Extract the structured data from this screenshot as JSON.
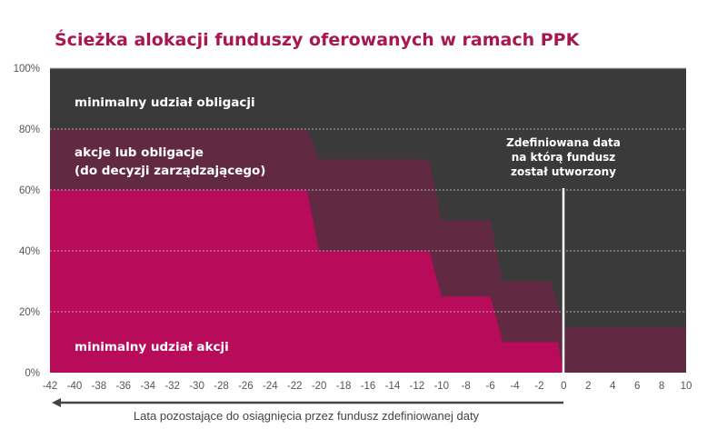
{
  "chart_data": {
    "type": "area",
    "title": "Ścieżka alokacji funduszy oferowanych w ramach PPK",
    "xlabel": "Lata pozostające do osiągnięcia przez fundusz zdefiniowanej daty",
    "xlim": [
      -42,
      10
    ],
    "ylim": [
      0,
      100
    ],
    "x_ticks": [
      "-42",
      "-40",
      "-38",
      "-36",
      "-34",
      "-32",
      "-30",
      "-28",
      "-26",
      "-24",
      "-22",
      "-20",
      "-18",
      "-16",
      "-14",
      "-12",
      "-10",
      "-8",
      "-6",
      "-4",
      "-2",
      "0",
      "2",
      "4",
      "6",
      "8",
      "10"
    ],
    "y_ticks": [
      "0%",
      "20%",
      "40%",
      "60%",
      "80%",
      "100%"
    ],
    "grid": true,
    "series": [
      {
        "name": "minimalny udział akcji",
        "color": "#b80b5a",
        "points": [
          [
            -42,
            60
          ],
          [
            -21,
            60
          ],
          [
            -20,
            40
          ],
          [
            -11,
            40
          ],
          [
            -10,
            25
          ],
          [
            -6,
            25
          ],
          [
            -5,
            10
          ],
          [
            -0.5,
            10
          ],
          [
            0,
            0
          ],
          [
            10,
            0
          ]
        ]
      },
      {
        "name": "akcje lub obligacje (do decyzji zarządzającego)",
        "color": "#612a42",
        "points": [
          [
            -42,
            80
          ],
          [
            -21,
            80
          ],
          [
            -20,
            70
          ],
          [
            -11,
            70
          ],
          [
            -10,
            50
          ],
          [
            -6,
            50
          ],
          [
            -5,
            30
          ],
          [
            -1,
            30
          ],
          [
            0,
            15
          ],
          [
            10,
            15
          ]
        ]
      },
      {
        "name": "minimalny udział obligacji",
        "color": "#3a3a3a",
        "points": [
          [
            -42,
            100
          ],
          [
            10,
            100
          ]
        ]
      }
    ],
    "band_labels": {
      "bonds": "minimalny udział obligacji",
      "mixed_line1": "akcje lub obligacje",
      "mixed_line2": "(do decyzji zarządzającego)",
      "equity": "minimalny udział akcji"
    },
    "annotation": {
      "x": 0,
      "lines": [
        "Zdefiniowana data",
        "na którą fundusz",
        "został utworzony"
      ]
    }
  }
}
